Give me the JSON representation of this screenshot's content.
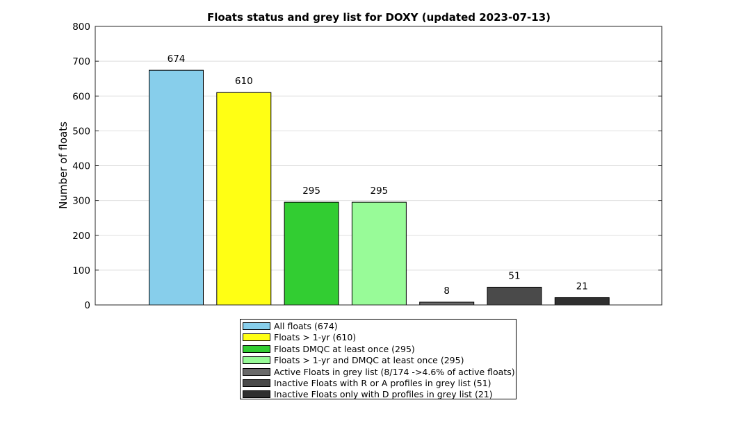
{
  "chart_data": {
    "type": "bar",
    "title": "Floats status and grey list for DOXY (updated 2023-07-13)",
    "xlabel": "",
    "ylabel": "Number of floats",
    "ylim": [
      0,
      800
    ],
    "yticks": [
      0,
      100,
      200,
      300,
      400,
      500,
      600,
      700,
      800
    ],
    "grid": "y",
    "legend_position": "bottom-center",
    "values": [
      674,
      610,
      295,
      295,
      8,
      51,
      21
    ],
    "value_labels": [
      "674",
      "610",
      "295",
      "295",
      "8",
      "51",
      "21"
    ],
    "colors": [
      "#87ceeb",
      "#ffff14",
      "#32cd32",
      "#98fb98",
      "#696969",
      "#4a4a4a",
      "#2f2f2f"
    ],
    "legend": [
      "All floats (674)",
      "Floats > 1-yr (610)",
      "Floats DMQC at least once (295)",
      "Floats > 1-yr and DMQC at least once (295)",
      "Active Floats in grey list (8/174 ->4.6% of active floats)",
      "Inactive Floats with R or A profiles in grey list (51)",
      "Inactive Floats only with D profiles in grey list (21)"
    ]
  }
}
